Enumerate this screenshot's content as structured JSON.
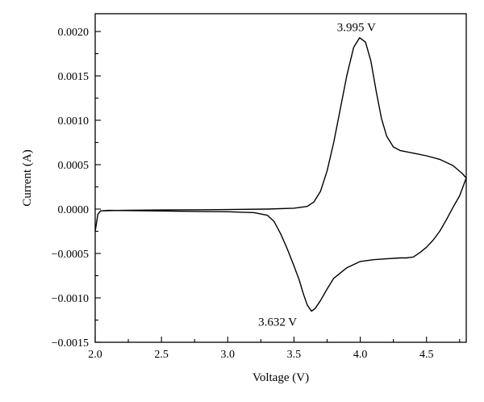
{
  "chart_data": {
    "type": "line",
    "title": "",
    "xlabel": "Voltage (V)",
    "ylabel": "Current (A)",
    "xlim": [
      2.0,
      4.8
    ],
    "ylim": [
      -0.0015,
      0.0022
    ],
    "x_ticks": [
      2.0,
      2.5,
      3.0,
      3.5,
      4.0,
      4.5
    ],
    "x_tick_labels": [
      "2.0",
      "2.5",
      "3.0",
      "3.5",
      "4.0",
      "4.5"
    ],
    "y_ticks": [
      -0.0015,
      -0.001,
      -0.0005,
      0.0,
      0.0005,
      0.001,
      0.0015,
      0.002
    ],
    "y_tick_labels": [
      "−0.0015",
      "−0.0010",
      "−0.0005",
      "0.0000",
      "0.0005",
      "0.0010",
      "0.0015",
      "0.0020"
    ],
    "grid": false,
    "series": [
      {
        "color": "#000000",
        "points": [
          [
            2.0,
            -0.00025
          ],
          [
            2.02,
            -6e-05
          ],
          [
            2.04,
            -2e-05
          ],
          [
            2.2,
            -1.5e-05
          ],
          [
            2.5,
            -1e-05
          ],
          [
            3.0,
            -5e-06
          ],
          [
            3.3,
            0.0
          ],
          [
            3.5,
            1e-05
          ],
          [
            3.6,
            3e-05
          ],
          [
            3.65,
            8e-05
          ],
          [
            3.7,
            0.0002
          ],
          [
            3.75,
            0.00043
          ],
          [
            3.8,
            0.00075
          ],
          [
            3.85,
            0.00113
          ],
          [
            3.9,
            0.00151
          ],
          [
            3.95,
            0.00182
          ],
          [
            3.995,
            0.00193
          ],
          [
            4.04,
            0.00188
          ],
          [
            4.08,
            0.00167
          ],
          [
            4.12,
            0.00133
          ],
          [
            4.16,
            0.00102
          ],
          [
            4.2,
            0.00082
          ],
          [
            4.25,
            0.0007
          ],
          [
            4.3,
            0.00066
          ],
          [
            4.4,
            0.00063
          ],
          [
            4.5,
            0.0006
          ],
          [
            4.6,
            0.00056
          ],
          [
            4.7,
            0.00049
          ],
          [
            4.77,
            0.0004
          ],
          [
            4.8,
            0.00035
          ],
          [
            4.75,
            0.00015
          ],
          [
            4.7,
            2e-05
          ],
          [
            4.65,
            -0.00012
          ],
          [
            4.6,
            -0.00025
          ],
          [
            4.55,
            -0.00035
          ],
          [
            4.5,
            -0.00043
          ],
          [
            4.45,
            -0.00049
          ],
          [
            4.4,
            -0.00054
          ],
          [
            4.35,
            -0.00055
          ],
          [
            4.3,
            -0.00055
          ],
          [
            4.2,
            -0.00056
          ],
          [
            4.1,
            -0.00057
          ],
          [
            4.0,
            -0.00059
          ],
          [
            3.9,
            -0.00066
          ],
          [
            3.8,
            -0.00078
          ],
          [
            3.75,
            -0.0009
          ],
          [
            3.7,
            -0.00103
          ],
          [
            3.66,
            -0.00112
          ],
          [
            3.632,
            -0.00115
          ],
          [
            3.6,
            -0.00108
          ],
          [
            3.57,
            -0.00095
          ],
          [
            3.54,
            -0.0008
          ],
          [
            3.5,
            -0.00064
          ],
          [
            3.45,
            -0.00045
          ],
          [
            3.4,
            -0.00028
          ],
          [
            3.35,
            -0.00014
          ],
          [
            3.3,
            -7e-05
          ],
          [
            3.2,
            -4e-05
          ],
          [
            3.0,
            -3e-05
          ],
          [
            2.7,
            -2.5e-05
          ],
          [
            2.4,
            -2e-05
          ],
          [
            2.1,
            -1.5e-05
          ],
          [
            2.04,
            -2e-05
          ]
        ]
      }
    ],
    "annotations": [
      {
        "text": "3.995 V",
        "x": 3.995,
        "y": 0.00193
      },
      {
        "text": "3.632 V",
        "x": 3.632,
        "y": -0.00115
      }
    ]
  }
}
